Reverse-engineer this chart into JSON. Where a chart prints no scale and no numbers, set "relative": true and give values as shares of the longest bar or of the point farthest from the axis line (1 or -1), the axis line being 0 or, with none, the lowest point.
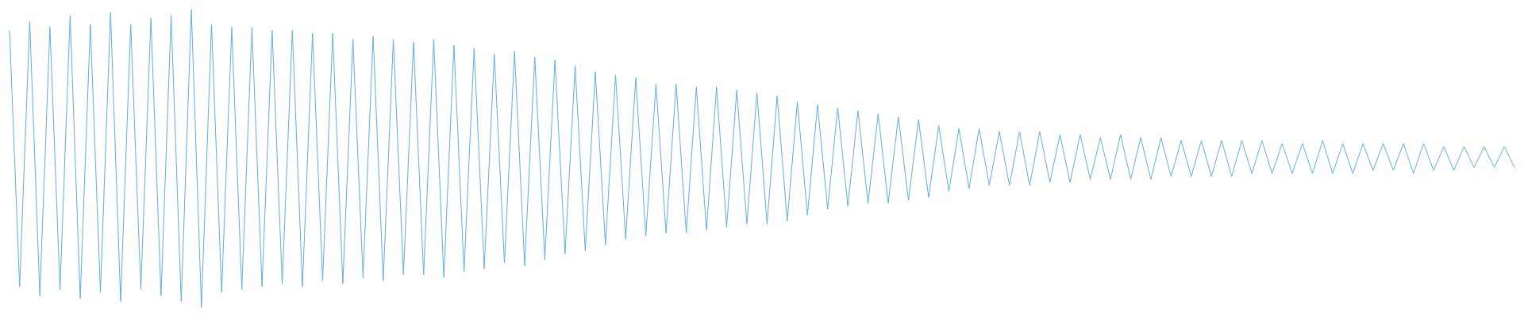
{
  "chart_data": {
    "type": "line",
    "relative": true,
    "color": "#5fade3",
    "categories": [
      null,
      null,
      null,
      null,
      null,
      null,
      null,
      null,
      null,
      null,
      null,
      null,
      null,
      null,
      null,
      null,
      null,
      null,
      null,
      null,
      null,
      null,
      null,
      null,
      null,
      null,
      null,
      null,
      null,
      null,
      null,
      null,
      null,
      null,
      null,
      null,
      null,
      null,
      null,
      null,
      null,
      null,
      null,
      null,
      null,
      null,
      null,
      null,
      null,
      null,
      null,
      null,
      null,
      null,
      null,
      null,
      null,
      null,
      null,
      null,
      null,
      null,
      null,
      null,
      null,
      null,
      null,
      null,
      null,
      null,
      null,
      null,
      null,
      null,
      null,
      null,
      null,
      null,
      null,
      null,
      null,
      null,
      null,
      null,
      null,
      null,
      null,
      null,
      null,
      null,
      null,
      null,
      null,
      null,
      null,
      null,
      null,
      null,
      null,
      null,
      null,
      null,
      null,
      null,
      null,
      null,
      null,
      null,
      null,
      null,
      null,
      null,
      null,
      null,
      null,
      null,
      null,
      null,
      null,
      null,
      null,
      null,
      null,
      null,
      null,
      null,
      null,
      null,
      null,
      null,
      null,
      null,
      null,
      null,
      null,
      null,
      null,
      null,
      null,
      null,
      null,
      null,
      null,
      null,
      null,
      null,
      null,
      null,
      null,
      null
    ],
    "values": [
      0.93,
      0.07,
      0.96,
      0.04,
      0.94,
      0.06,
      0.98,
      0.03,
      0.95,
      0.05,
      0.99,
      0.02,
      0.95,
      0.06,
      0.97,
      0.04,
      0.98,
      0.02,
      1,
      0,
      0.95,
      0.05,
      0.94,
      0.06,
      0.94,
      0.07,
      0.93,
      0.08,
      0.93,
      0.07,
      0.92,
      0.09,
      0.92,
      0.08,
      0.9,
      0.1,
      0.91,
      0.09,
      0.9,
      0.11,
      0.89,
      0.11,
      0.9,
      0.1,
      0.88,
      0.12,
      0.87,
      0.13,
      0.85,
      0.15,
      0.86,
      0.14,
      0.84,
      0.16,
      0.83,
      0.18,
      0.81,
      0.19,
      0.79,
      0.21,
      0.78,
      0.23,
      0.77,
      0.24,
      0.75,
      0.25,
      0.75,
      0.25,
      0.74,
      0.26,
      0.74,
      0.27,
      0.73,
      0.28,
      0.72,
      0.28,
      0.71,
      0.29,
      0.69,
      0.31,
      0.68,
      0.33,
      0.67,
      0.34,
      0.66,
      0.35,
      0.65,
      0.35,
      0.64,
      0.36,
      0.63,
      0.37,
      0.61,
      0.39,
      0.6,
      0.4,
      0.6,
      0.41,
      0.59,
      0.41,
      0.59,
      0.41,
      0.59,
      0.42,
      0.58,
      0.42,
      0.58,
      0.43,
      0.57,
      0.43,
      0.58,
      0.43,
      0.57,
      0.43,
      0.57,
      0.44,
      0.56,
      0.44,
      0.56,
      0.44,
      0.56,
      0.44,
      0.56,
      0.45,
      0.56,
      0.45,
      0.55,
      0.45,
      0.55,
      0.45,
      0.56,
      0.45,
      0.55,
      0.45,
      0.55,
      0.46,
      0.55,
      0.46,
      0.55,
      0.45,
      0.55,
      0.46,
      0.54,
      0.46,
      0.54,
      0.47,
      0.54,
      0.47,
      0.54,
      0.47
    ]
  }
}
